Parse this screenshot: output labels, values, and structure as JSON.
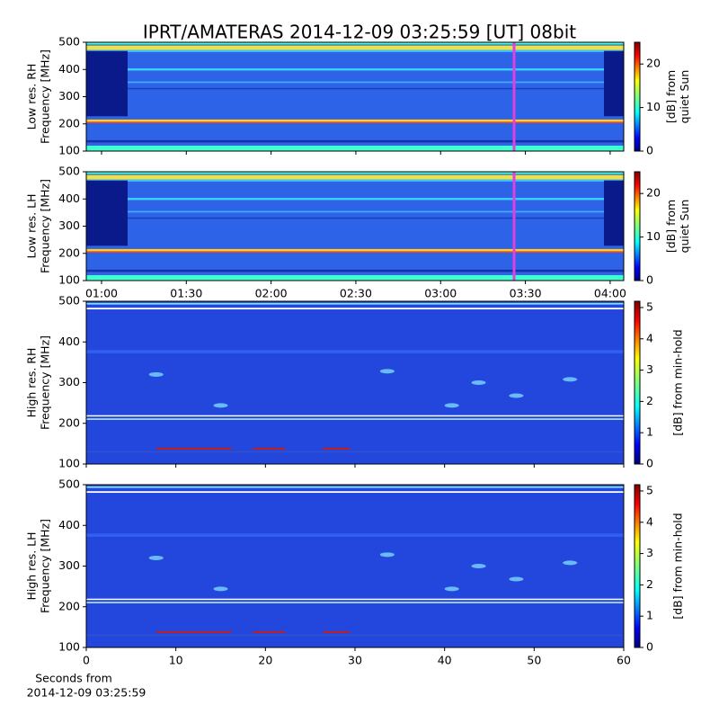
{
  "title": "IPRT/AMATERAS 2014-12-09 03:25:59 [UT]   08bit",
  "xlabel": [
    "Seconds from",
    "2014-12-09 03:25:59"
  ],
  "chart_data": [
    {
      "type": "heatmap",
      "ylabel": [
        "Low res. RH",
        "Frequency [MHz]"
      ],
      "ylim": [
        100,
        500
      ],
      "yticks": [
        100,
        200,
        300,
        400,
        500
      ],
      "xlim": [
        54.6,
        244.8
      ],
      "xticks": [
        60,
        90,
        120,
        150,
        180,
        210,
        240
      ],
      "xticklabels": false,
      "cursor_x": 206,
      "cursor_color": "#e040e0",
      "colorbar": {
        "label": [
          "[dB] from",
          "quiet Sun"
        ],
        "lim": [
          0,
          25
        ],
        "ticks": [
          0,
          10,
          20
        ]
      }
    },
    {
      "type": "heatmap",
      "ylabel": [
        "Low res. LH",
        "Frequency [MHz]"
      ],
      "ylim": [
        100,
        500
      ],
      "yticks": [
        100,
        200,
        300,
        400,
        500
      ],
      "xlim": [
        54.6,
        244.8
      ],
      "xticks": [
        {
          "value": 60,
          "label": "01:00"
        },
        {
          "value": 90,
          "label": "01:30"
        },
        {
          "value": 120,
          "label": "02:00"
        },
        {
          "value": 150,
          "label": "02:30"
        },
        {
          "value": 180,
          "label": "03:00"
        },
        {
          "value": 210,
          "label": "03:30"
        },
        {
          "value": 240,
          "label": "04:00"
        }
      ],
      "xticklabels": true,
      "cursor_x": 206,
      "cursor_color": "#e040e0",
      "colorbar": {
        "label": [
          "[dB] from",
          "quiet Sun"
        ],
        "lim": [
          0,
          25
        ],
        "ticks": [
          0,
          10,
          20
        ]
      }
    },
    {
      "type": "heatmap",
      "ylabel": [
        "High res. RH",
        "Frequency [MHz]"
      ],
      "ylim": [
        100,
        500
      ],
      "yticks": [
        100,
        200,
        300,
        400,
        500
      ],
      "xlim": [
        0,
        60
      ],
      "xticks": [
        0,
        10,
        20,
        30,
        40,
        50,
        60
      ],
      "xticklabels": false,
      "colorbar": {
        "label": [
          "[dB] from min-hold"
        ],
        "lim": [
          0,
          5.2
        ],
        "ticks": [
          0,
          1,
          2,
          3,
          4,
          5
        ]
      }
    },
    {
      "type": "heatmap",
      "ylabel": [
        "High res. LH",
        "Frequency [MHz]"
      ],
      "ylim": [
        100,
        500
      ],
      "yticks": [
        100,
        200,
        300,
        400,
        500
      ],
      "xlim": [
        0,
        60
      ],
      "xticks": [
        0,
        10,
        20,
        30,
        40,
        50,
        60
      ],
      "xticklabels": true,
      "colorbar": {
        "label": [
          "[dB] from min-hold"
        ],
        "lim": [
          0,
          5.2
        ],
        "ticks": [
          0,
          1,
          2,
          3,
          4,
          5
        ]
      }
    }
  ]
}
